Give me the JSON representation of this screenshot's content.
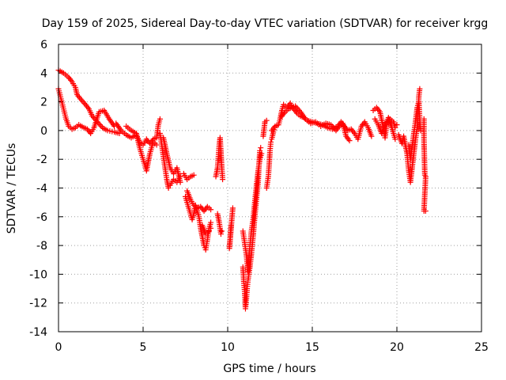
{
  "chart_data": {
    "type": "scatter",
    "title": "Day 159 of 2025, Sidereal Day-to-day VTEC variation (SDTVAR) for receiver krgg",
    "xlabel": "GPS time / hours",
    "ylabel": "SDTVAR / TECUs",
    "xlim": [
      0,
      25
    ],
    "ylim": [
      -14,
      6
    ],
    "x_ticks": [
      0,
      5,
      10,
      15,
      20,
      25
    ],
    "x_tick_labels": [
      "0",
      "5",
      "10",
      "15",
      "20",
      "25"
    ],
    "y_ticks": [
      -14,
      -12,
      -10,
      -8,
      -6,
      -4,
      -2,
      0,
      2,
      4,
      6
    ],
    "y_tick_labels": [
      "-14",
      "-12",
      "-10",
      "-8",
      "-6",
      "-4",
      "-2",
      "0",
      "2",
      "4",
      "6"
    ],
    "grid": true,
    "marker": "+",
    "series_color": "#ff0000",
    "series": [
      {
        "name": "SDTVAR",
        "tracks": [
          [
            [
              0.0,
              4.2
            ],
            [
              0.3,
              4.0
            ],
            [
              0.6,
              3.7
            ],
            [
              0.8,
              3.4
            ],
            [
              1.0,
              3.0
            ],
            [
              1.1,
              2.5
            ],
            [
              1.3,
              2.2
            ],
            [
              1.6,
              1.8
            ],
            [
              1.8,
              1.5
            ],
            [
              2.0,
              1.0
            ],
            [
              2.3,
              0.6
            ],
            [
              2.6,
              0.2
            ],
            [
              2.9,
              0.0
            ],
            [
              3.3,
              -0.1
            ],
            [
              3.6,
              -0.2
            ]
          ],
          [
            [
              0.0,
              2.9
            ],
            [
              0.15,
              2.2
            ],
            [
              0.3,
              1.5
            ],
            [
              0.45,
              0.8
            ],
            [
              0.6,
              0.3
            ],
            [
              0.8,
              0.1
            ],
            [
              1.0,
              0.2
            ],
            [
              1.2,
              0.4
            ],
            [
              1.5,
              0.2
            ],
            [
              1.7,
              0.1
            ],
            [
              1.9,
              -0.2
            ],
            [
              2.1,
              0.2
            ],
            [
              2.4,
              1.3
            ],
            [
              2.7,
              1.4
            ],
            [
              3.0,
              0.8
            ],
            [
              3.3,
              0.3
            ]
          ],
          [
            [
              3.4,
              0.5
            ],
            [
              3.7,
              0.0
            ],
            [
              4.0,
              -0.3
            ],
            [
              4.3,
              -0.5
            ],
            [
              4.6,
              -0.3
            ],
            [
              4.8,
              -0.8
            ],
            [
              5.0,
              -1.0
            ],
            [
              5.2,
              -0.6
            ],
            [
              5.4,
              -0.9
            ],
            [
              5.6,
              -0.6
            ],
            [
              5.8,
              -0.5
            ],
            [
              5.9,
              0.4
            ],
            [
              6.0,
              0.8
            ]
          ],
          [
            [
              4.0,
              0.3
            ],
            [
              4.3,
              0.0
            ],
            [
              4.6,
              -0.2
            ],
            [
              4.8,
              -1.2
            ],
            [
              5.0,
              -2.0
            ],
            [
              5.2,
              -2.8
            ],
            [
              5.4,
              -1.6
            ],
            [
              5.6,
              -0.8
            ],
            [
              5.8,
              -1.0
            ]
          ],
          [
            [
              6.0,
              -0.2
            ],
            [
              6.1,
              -1.0
            ],
            [
              6.2,
              -1.8
            ],
            [
              6.3,
              -2.6
            ],
            [
              6.4,
              -3.4
            ],
            [
              6.5,
              -4.0
            ],
            [
              6.6,
              -3.8
            ],
            [
              6.8,
              -3.4
            ],
            [
              7.0,
              -3.6
            ],
            [
              7.2,
              -3.2
            ]
          ],
          [
            [
              6.2,
              -0.5
            ],
            [
              6.4,
              -1.6
            ],
            [
              6.6,
              -2.6
            ],
            [
              6.8,
              -3.0
            ],
            [
              7.0,
              -2.6
            ],
            [
              7.2,
              -3.6
            ]
          ],
          [
            [
              7.4,
              -3.0
            ],
            [
              7.6,
              -3.4
            ],
            [
              7.8,
              -3.2
            ],
            [
              8.0,
              -3.1
            ]
          ],
          [
            [
              7.5,
              -4.6
            ],
            [
              7.7,
              -5.4
            ],
            [
              7.9,
              -6.2
            ],
            [
              8.0,
              -5.8
            ],
            [
              8.1,
              -5.2
            ],
            [
              8.2,
              -5.6
            ],
            [
              8.3,
              -6.0
            ],
            [
              8.4,
              -6.8
            ],
            [
              8.5,
              -7.4
            ],
            [
              8.6,
              -8.0
            ],
            [
              8.7,
              -8.3
            ],
            [
              8.8,
              -7.6
            ],
            [
              8.9,
              -6.8
            ],
            [
              9.0,
              -6.4
            ]
          ],
          [
            [
              7.6,
              -4.2
            ],
            [
              7.8,
              -4.8
            ],
            [
              8.0,
              -5.2
            ],
            [
              8.2,
              -5.4
            ],
            [
              8.4,
              -5.3
            ],
            [
              8.6,
              -5.6
            ],
            [
              8.8,
              -5.3
            ],
            [
              9.0,
              -5.5
            ]
          ],
          [
            [
              8.5,
              -6.6
            ],
            [
              8.7,
              -7.2
            ],
            [
              8.9,
              -7.0
            ],
            [
              9.0,
              -6.8
            ]
          ],
          [
            [
              9.3,
              -3.2
            ],
            [
              9.4,
              -2.6
            ],
            [
              9.45,
              -1.8
            ],
            [
              9.5,
              -1.0
            ],
            [
              9.55,
              -0.5
            ],
            [
              9.6,
              -1.5
            ],
            [
              9.65,
              -2.6
            ],
            [
              9.7,
              -3.4
            ]
          ],
          [
            [
              9.4,
              -5.8
            ],
            [
              9.5,
              -6.4
            ],
            [
              9.6,
              -7.2
            ],
            [
              9.65,
              -7.0
            ]
          ],
          [
            [
              10.2,
              -6.6
            ],
            [
              10.1,
              -8.2
            ],
            [
              10.3,
              -5.4
            ]
          ],
          [
            [
              10.9,
              -9.5
            ],
            [
              10.95,
              -10.5
            ],
            [
              11.0,
              -11.2
            ],
            [
              11.05,
              -12.4
            ],
            [
              11.1,
              -11.8
            ],
            [
              11.15,
              -11.0
            ],
            [
              11.2,
              -10.4
            ],
            [
              11.3,
              -9.6
            ],
            [
              11.4,
              -8.6
            ],
            [
              11.5,
              -7.4
            ],
            [
              11.6,
              -6.0
            ],
            [
              11.7,
              -4.8
            ],
            [
              11.8,
              -3.6
            ],
            [
              11.85,
              -2.4
            ],
            [
              11.9,
              -1.4
            ],
            [
              11.95,
              -1.2
            ]
          ],
          [
            [
              10.9,
              -7.0
            ],
            [
              11.0,
              -7.8
            ],
            [
              11.1,
              -8.6
            ],
            [
              11.2,
              -9.8
            ],
            [
              11.3,
              -8.2
            ],
            [
              11.4,
              -7.0
            ],
            [
              11.5,
              -6.2
            ],
            [
              11.6,
              -5.0
            ],
            [
              11.7,
              -3.8
            ],
            [
              11.8,
              -2.8
            ],
            [
              11.9,
              -2.0
            ],
            [
              12.0,
              -1.6
            ]
          ],
          [
            [
              12.1,
              -0.4
            ],
            [
              12.2,
              0.6
            ],
            [
              12.3,
              0.7
            ]
          ],
          [
            [
              12.3,
              -4.0
            ],
            [
              12.4,
              -3.2
            ],
            [
              12.45,
              -2.4
            ],
            [
              12.5,
              -1.4
            ],
            [
              12.55,
              -0.8
            ],
            [
              12.6,
              -0.6
            ],
            [
              12.7,
              -0.1
            ],
            [
              12.8,
              0.2
            ]
          ],
          [
            [
              12.6,
              0.0
            ],
            [
              12.8,
              0.3
            ],
            [
              13.0,
              0.4
            ],
            [
              13.1,
              0.8
            ],
            [
              13.2,
              1.4
            ],
            [
              13.3,
              1.8
            ],
            [
              13.5,
              1.6
            ],
            [
              13.7,
              1.9
            ],
            [
              13.9,
              1.5
            ],
            [
              14.1,
              1.2
            ],
            [
              14.3,
              1.0
            ],
            [
              14.5,
              0.9
            ],
            [
              14.7,
              0.7
            ],
            [
              15.0,
              0.6
            ],
            [
              15.3,
              0.5
            ],
            [
              15.6,
              0.4
            ],
            [
              15.9,
              0.2
            ],
            [
              16.2,
              0.1
            ],
            [
              16.5,
              0.3
            ],
            [
              16.7,
              0.6
            ],
            [
              16.9,
              0.3
            ],
            [
              17.1,
              0.0
            ],
            [
              17.3,
              0.1
            ],
            [
              17.5,
              -0.2
            ],
            [
              17.7,
              -0.6
            ],
            [
              17.9,
              0.3
            ],
            [
              18.1,
              0.6
            ],
            [
              18.3,
              0.2
            ],
            [
              18.5,
              -0.4
            ]
          ],
          [
            [
              13.2,
              1.0
            ],
            [
              13.4,
              1.3
            ],
            [
              13.6,
              1.5
            ],
            [
              13.8,
              1.6
            ],
            [
              14.0,
              1.7
            ],
            [
              14.3,
              1.3
            ],
            [
              14.6,
              0.8
            ],
            [
              14.9,
              0.5
            ],
            [
              15.2,
              0.6
            ],
            [
              15.5,
              0.3
            ],
            [
              15.8,
              0.5
            ],
            [
              16.1,
              0.4
            ],
            [
              16.4,
              0.0
            ],
            [
              16.6,
              0.3
            ],
            [
              16.8,
              0.5
            ],
            [
              17.0,
              -0.4
            ],
            [
              17.2,
              -0.7
            ]
          ],
          [
            [
              18.6,
              1.4
            ],
            [
              18.8,
              1.6
            ],
            [
              19.0,
              1.3
            ],
            [
              19.2,
              0.2
            ],
            [
              19.3,
              -0.5
            ],
            [
              19.4,
              0.5
            ],
            [
              19.6,
              0.8
            ],
            [
              19.8,
              0.6
            ],
            [
              19.9,
              0.2
            ],
            [
              20.0,
              0.4
            ]
          ],
          [
            [
              18.7,
              0.8
            ],
            [
              18.9,
              0.4
            ],
            [
              19.1,
              -0.2
            ],
            [
              19.3,
              0.4
            ],
            [
              19.5,
              0.9
            ],
            [
              19.7,
              0.2
            ],
            [
              19.9,
              -0.6
            ]
          ],
          [
            [
              20.1,
              -0.3
            ],
            [
              20.3,
              -0.9
            ],
            [
              20.4,
              -0.4
            ],
            [
              20.5,
              -1.0
            ],
            [
              20.6,
              -1.6
            ],
            [
              20.7,
              -2.8
            ],
            [
              20.8,
              -3.6
            ],
            [
              20.9,
              -2.6
            ],
            [
              21.0,
              -1.6
            ],
            [
              21.1,
              -0.6
            ],
            [
              21.2,
              0.2
            ],
            [
              21.25,
              1.2
            ],
            [
              21.3,
              2.4
            ],
            [
              21.35,
              2.9
            ]
          ],
          [
            [
              20.7,
              -1.0
            ],
            [
              20.8,
              -2.0
            ],
            [
              20.9,
              -1.2
            ],
            [
              21.0,
              -0.2
            ],
            [
              21.1,
              0.6
            ],
            [
              21.2,
              1.6
            ],
            [
              21.3,
              2.0
            ],
            [
              21.35,
              0.8
            ],
            [
              21.4,
              0.0
            ]
          ],
          [
            [
              21.6,
              0.8
            ],
            [
              21.6,
              -0.6
            ],
            [
              21.65,
              -3.1
            ],
            [
              21.7,
              -3.2
            ],
            [
              21.6,
              -5.6
            ],
            [
              21.7,
              -5.6
            ]
          ]
        ]
      }
    ]
  }
}
